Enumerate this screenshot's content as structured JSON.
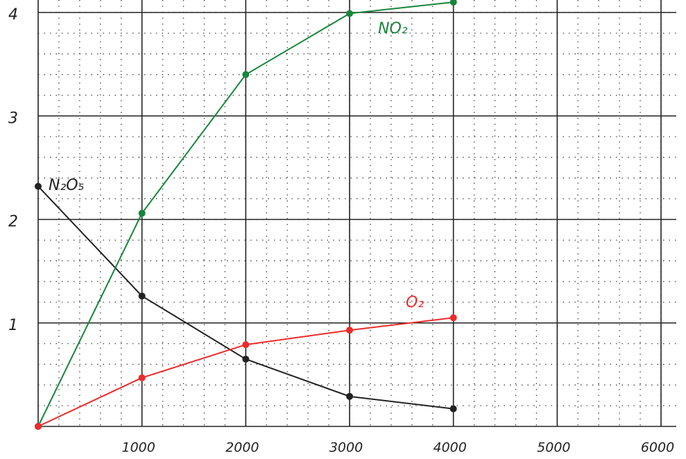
{
  "chart_data": {
    "type": "line",
    "x": [
      0,
      1000,
      2000,
      3000,
      4000
    ],
    "series": [
      {
        "name": "N₂O₅",
        "color": "#222222",
        "values": [
          2.32,
          1.26,
          0.65,
          0.29,
          0.17
        ]
      },
      {
        "name": "NO₂",
        "color": "#16863a",
        "values": [
          0,
          2.06,
          3.4,
          3.99,
          4.1
        ]
      },
      {
        "name": "O₂",
        "color": "#ee2a2a",
        "values": [
          0,
          0.47,
          0.79,
          0.93,
          1.05
        ]
      }
    ],
    "xlim": [
      0,
      6000
    ],
    "ylim": [
      0,
      4
    ],
    "xticks": [
      1000,
      2000,
      3000,
      4000,
      5000,
      6000
    ],
    "yticks": [
      1,
      2,
      3,
      4
    ],
    "grid": true
  }
}
